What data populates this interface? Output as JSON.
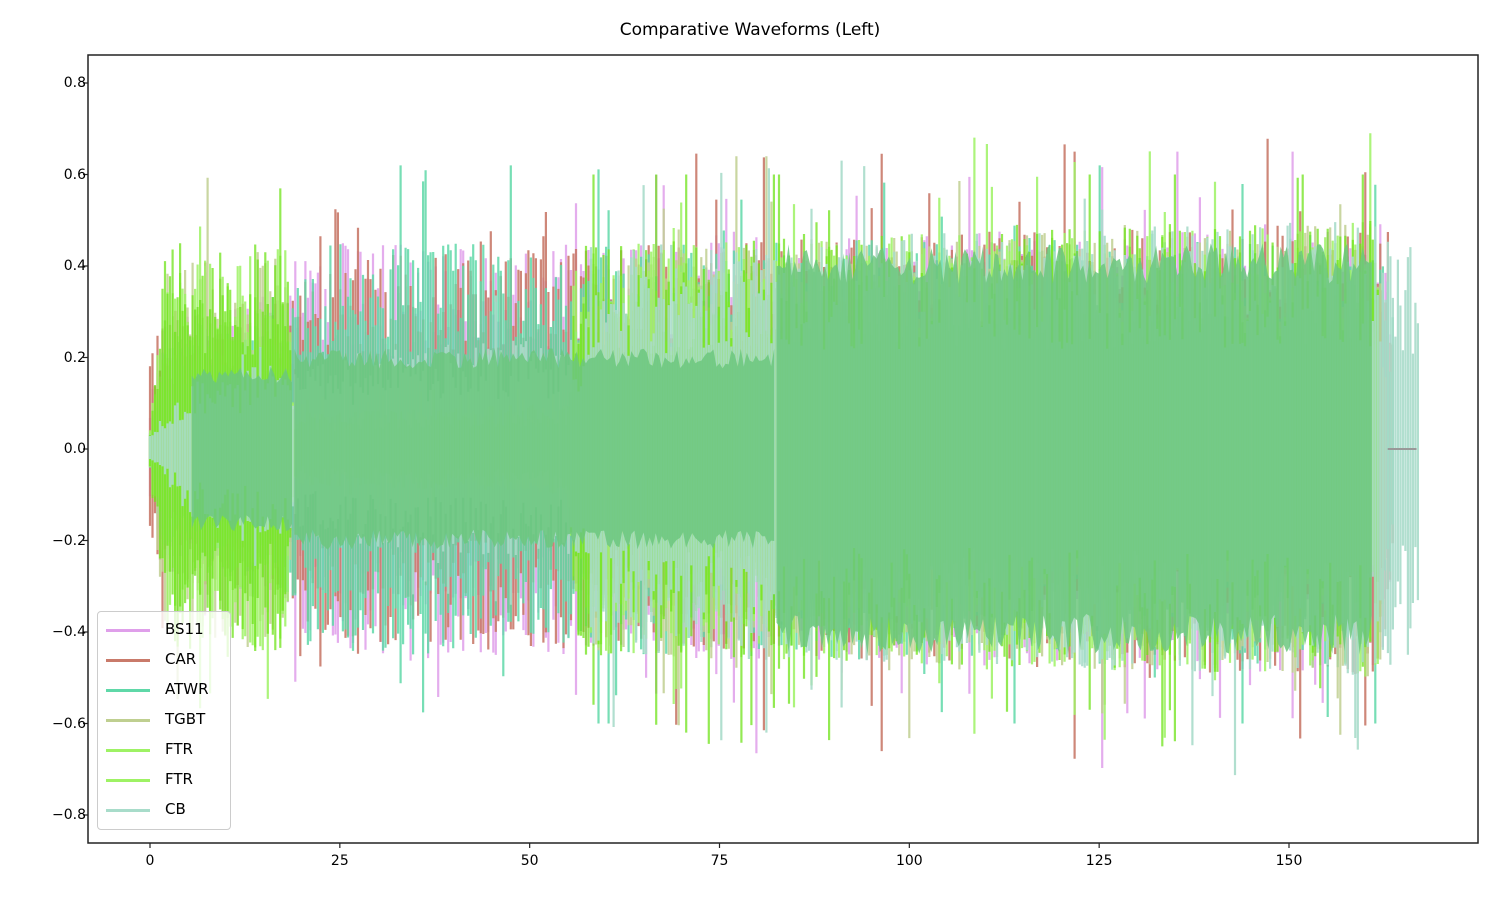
{
  "chart_data": {
    "type": "line",
    "title": "Comparative Waveforms (Left)",
    "xlabel": "",
    "ylabel": "",
    "xlim": [
      -8,
      175
    ],
    "ylim": [
      -0.86,
      0.86
    ],
    "x_ticks": [
      0,
      25,
      50,
      75,
      100,
      125,
      150
    ],
    "x_tick_labels": [
      "0",
      "25",
      "50",
      "75",
      "100",
      "125",
      "150"
    ],
    "y_ticks": [
      0.8,
      0.6,
      0.4,
      0.2,
      0.0,
      -0.2,
      -0.4,
      -0.6,
      -0.8
    ],
    "y_tick_labels": [
      "0.8",
      "0.6",
      "0.4",
      "0.2",
      "0.0",
      "−0.2",
      "−0.4",
      "−0.6",
      "−0.8"
    ],
    "grid": false,
    "legend_position": "lower left",
    "series": [
      {
        "name": "BS11",
        "color": "#df9fea",
        "alpha": 0.85,
        "start": 0,
        "end": 163.5,
        "envelope": [
          [
            0,
            0.12
          ],
          [
            2,
            0.28
          ],
          [
            19,
            0.35
          ],
          [
            20,
            0.45
          ],
          [
            55,
            0.45
          ],
          [
            57,
            0.45
          ],
          [
            162,
            0.5
          ],
          [
            163.5,
            0.3
          ]
        ],
        "peak_max": 0.65,
        "peak_min": -0.73
      },
      {
        "name": "CAR",
        "color": "#c97a6a",
        "alpha": 0.9,
        "start": 0,
        "end": 164,
        "envelope": [
          [
            0,
            0.2
          ],
          [
            2,
            0.3
          ],
          [
            19,
            0.33
          ],
          [
            20,
            0.42
          ],
          [
            55,
            0.45
          ],
          [
            57,
            0.45
          ],
          [
            162,
            0.5
          ],
          [
            164,
            0.2
          ]
        ],
        "peak_max": 0.71,
        "peak_min": -0.71
      },
      {
        "name": "ATWR",
        "color": "#5fd8a8",
        "alpha": 0.85,
        "start": 0,
        "end": 164,
        "envelope": [
          [
            0,
            0.05
          ],
          [
            2,
            0.25
          ],
          [
            19,
            0.35
          ],
          [
            20,
            0.45
          ],
          [
            55,
            0.45
          ],
          [
            57,
            0.45
          ],
          [
            162,
            0.48
          ],
          [
            164,
            0.3
          ]
        ],
        "peak_max": 0.62,
        "peak_min": -0.6
      },
      {
        "name": "TGBT",
        "color": "#bfcf90",
        "alpha": 0.85,
        "start": 0,
        "end": 163,
        "envelope": [
          [
            0,
            0.05
          ],
          [
            2,
            0.4
          ],
          [
            18,
            0.45
          ],
          [
            19,
            0.05
          ],
          [
            57,
            0.1
          ],
          [
            58,
            0.45
          ],
          [
            162,
            0.5
          ],
          [
            163,
            0.2
          ]
        ],
        "peak_max": 0.64,
        "peak_min": -0.69
      },
      {
        "name": "FTR",
        "color": "#9ef264",
        "alpha": 0.85,
        "start": 0,
        "end": 162,
        "envelope": [
          [
            0,
            0.05
          ],
          [
            2,
            0.4
          ],
          [
            18,
            0.45
          ],
          [
            19,
            0.08
          ],
          [
            55,
            0.1
          ],
          [
            56,
            0.45
          ],
          [
            162,
            0.5
          ]
        ],
        "peak_max": 0.69,
        "peak_min": -0.67
      },
      {
        "name": "FTR",
        "color": "#6fe31a",
        "alpha": 0.75,
        "start": 0,
        "end": 162,
        "envelope": [
          [
            0,
            0.05
          ],
          [
            2,
            0.45
          ],
          [
            18,
            0.45
          ],
          [
            19,
            0.08
          ],
          [
            55,
            0.1
          ],
          [
            56,
            0.45
          ],
          [
            162,
            0.5
          ]
        ],
        "peak_max": 0.6,
        "peak_min": -0.65
      },
      {
        "name": "CB",
        "color": "#a8dcca",
        "alpha": 0.9,
        "start": 0,
        "end": 167,
        "envelope": [
          [
            0,
            0.03
          ],
          [
            5,
            0.15
          ],
          [
            19,
            0.2
          ],
          [
            57,
            0.25
          ],
          [
            58,
            0.45
          ],
          [
            160,
            0.5
          ],
          [
            167,
            0.45
          ]
        ],
        "peak_max": 0.78,
        "peak_min": -0.78
      }
    ],
    "overlay_fill": {
      "color": "#6cc77e",
      "regions": [
        [
          5.5,
          19,
          0.18
        ],
        [
          19,
          82.5,
          0.22
        ],
        [
          82.5,
          161,
          0.45
        ]
      ]
    }
  },
  "legend": {
    "items": [
      {
        "label": "BS11",
        "color": "#df9fea"
      },
      {
        "label": "CAR",
        "color": "#c97a6a"
      },
      {
        "label": "ATWR",
        "color": "#5fd8a8"
      },
      {
        "label": "TGBT",
        "color": "#bfcf90"
      },
      {
        "label": "FTR",
        "color": "#9ef264"
      },
      {
        "label": "FTR",
        "color": "#9ef264"
      },
      {
        "label": "CB",
        "color": "#a8dcca"
      }
    ]
  }
}
